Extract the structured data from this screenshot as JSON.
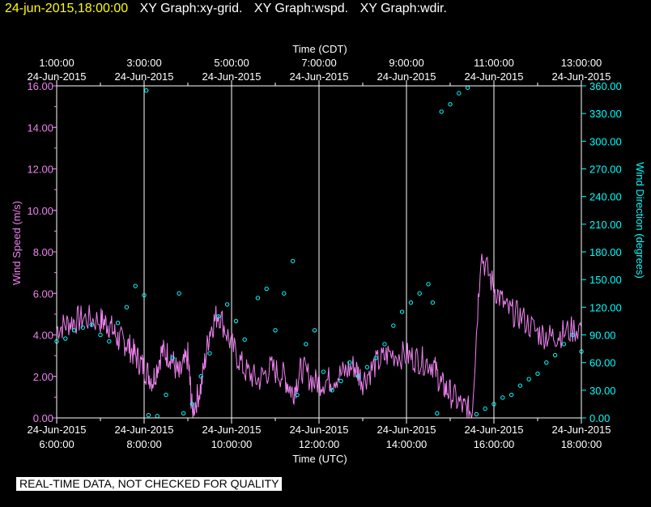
{
  "title": {
    "date": "24-jun-2015,18:00:00",
    "graphs": [
      "XY Graph:xy-grid.",
      "XY Graph:wspd.",
      "XY Graph:wdir."
    ]
  },
  "disclaimer": "REAL-TIME DATA, NOT CHECKED FOR QUALITY",
  "colors": {
    "background": "#000000",
    "speed": "#ee82ee",
    "direction": "#00ffff",
    "title_date": "#ffff00",
    "axis_text": "#ffffff",
    "grid": "#ffffff"
  },
  "chart_data": {
    "type": "line",
    "grid": true,
    "x_range": [
      "24-Jun-2015 06:00:00 UTC",
      "24-Jun-2015 18:00:00 UTC"
    ],
    "top_axis": {
      "label": "Time (CDT)",
      "ticks": [
        {
          "hour": 1,
          "time": "1:00:00",
          "date": "24-Jun-2015"
        },
        {
          "hour": 3,
          "time": "3:00:00",
          "date": "24-Jun-2015"
        },
        {
          "hour": 5,
          "time": "5:00:00",
          "date": "24-Jun-2015"
        },
        {
          "hour": 7,
          "time": "7:00:00",
          "date": "24-Jun-2015"
        },
        {
          "hour": 9,
          "time": "9:00:00",
          "date": "24-Jun-2015"
        },
        {
          "hour": 11,
          "time": "11:00:00",
          "date": "24-Jun-2015"
        },
        {
          "hour": 13,
          "time": "13:00:00",
          "date": "24-Jun-2015"
        }
      ]
    },
    "bottom_axis": {
      "label": "Time (UTC)",
      "ticks": [
        {
          "hour": 6,
          "date": "24-Jun-2015",
          "time": "6:00:00"
        },
        {
          "hour": 8,
          "date": "24-Jun-2015",
          "time": "8:00:00"
        },
        {
          "hour": 10,
          "date": "24-Jun-2015",
          "time": "10:00:00"
        },
        {
          "hour": 12,
          "date": "24-Jun-2015",
          "time": "12:00:00"
        },
        {
          "hour": 14,
          "date": "24-Jun-2015",
          "time": "14:00:00"
        },
        {
          "hour": 16,
          "date": "24-Jun-2015",
          "time": "16:00:00"
        },
        {
          "hour": 18,
          "date": "24-Jun-2015",
          "time": "18:00:00"
        }
      ]
    },
    "left_axis": {
      "label": "Wind Speed (m/s)",
      "range": [
        0,
        16
      ],
      "ticks": [
        "0.00",
        "2.00",
        "4.00",
        "6.00",
        "8.00",
        "10.00",
        "12.00",
        "14.00",
        "16.00"
      ]
    },
    "right_axis": {
      "label": "Wind Direction (degrees)",
      "range": [
        0,
        360
      ],
      "ticks": [
        "0.00",
        "30.00",
        "60.00",
        "90.00",
        "120.00",
        "150.00",
        "180.00",
        "210.00",
        "240.00",
        "270.00",
        "300.00",
        "330.00",
        "360.00"
      ]
    },
    "series": [
      {
        "name": "Wind Speed (m/s)",
        "style": "line",
        "axis": "left",
        "points": [
          [
            6.0,
            4.3
          ],
          [
            6.3,
            4.6
          ],
          [
            6.6,
            4.8
          ],
          [
            7.0,
            4.7
          ],
          [
            7.2,
            4.5
          ],
          [
            7.4,
            3.8
          ],
          [
            7.6,
            3.6
          ],
          [
            7.8,
            3.0
          ],
          [
            8.0,
            2.4
          ],
          [
            8.2,
            1.8
          ],
          [
            8.4,
            3.2
          ],
          [
            8.6,
            3.0
          ],
          [
            8.8,
            2.0
          ],
          [
            9.0,
            3.0
          ],
          [
            9.1,
            0.3
          ],
          [
            9.3,
            1.5
          ],
          [
            9.5,
            4.2
          ],
          [
            9.7,
            5.1
          ],
          [
            10.0,
            3.5
          ],
          [
            10.3,
            2.3
          ],
          [
            10.6,
            1.8
          ],
          [
            10.9,
            2.4
          ],
          [
            11.2,
            2.0
          ],
          [
            11.4,
            1.2
          ],
          [
            11.6,
            2.4
          ],
          [
            11.9,
            1.7
          ],
          [
            12.2,
            1.8
          ],
          [
            12.5,
            2.1
          ],
          [
            12.8,
            2.5
          ],
          [
            13.0,
            1.8
          ],
          [
            13.3,
            2.6
          ],
          [
            13.6,
            3.1
          ],
          [
            14.0,
            3.0
          ],
          [
            14.3,
            2.8
          ],
          [
            14.6,
            2.6
          ],
          [
            14.8,
            1.6
          ],
          [
            15.0,
            1.2
          ],
          [
            15.3,
            0.5
          ],
          [
            15.5,
            0.3
          ],
          [
            15.7,
            7.9
          ],
          [
            16.0,
            6.3
          ],
          [
            16.3,
            5.2
          ],
          [
            16.6,
            4.9
          ],
          [
            17.0,
            4.1
          ],
          [
            17.3,
            3.9
          ],
          [
            17.6,
            4.1
          ],
          [
            18.0,
            4.4
          ]
        ]
      },
      {
        "name": "Wind Direction (degrees)",
        "style": "markers",
        "axis": "right",
        "points": [
          [
            6.0,
            83
          ],
          [
            6.2,
            86
          ],
          [
            6.4,
            95
          ],
          [
            6.6,
            98
          ],
          [
            6.8,
            101
          ],
          [
            7.0,
            90
          ],
          [
            7.2,
            83
          ],
          [
            7.4,
            103
          ],
          [
            7.6,
            120
          ],
          [
            7.8,
            143
          ],
          [
            8.0,
            133
          ],
          [
            8.05,
            355
          ],
          [
            8.1,
            3
          ],
          [
            8.3,
            2
          ],
          [
            8.5,
            25
          ],
          [
            8.65,
            65
          ],
          [
            8.8,
            135
          ],
          [
            8.9,
            5
          ],
          [
            9.1,
            15
          ],
          [
            9.3,
            45
          ],
          [
            9.5,
            70
          ],
          [
            9.7,
            110
          ],
          [
            9.9,
            123
          ],
          [
            10.1,
            105
          ],
          [
            10.3,
            85
          ],
          [
            10.6,
            130
          ],
          [
            10.8,
            140
          ],
          [
            11.0,
            95
          ],
          [
            11.2,
            135
          ],
          [
            11.4,
            170
          ],
          [
            11.5,
            25
          ],
          [
            11.7,
            80
          ],
          [
            11.9,
            95
          ],
          [
            12.1,
            50
          ],
          [
            12.3,
            30
          ],
          [
            12.5,
            40
          ],
          [
            12.7,
            60
          ],
          [
            12.9,
            45
          ],
          [
            13.1,
            55
          ],
          [
            13.3,
            65
          ],
          [
            13.5,
            80
          ],
          [
            13.7,
            100
          ],
          [
            13.9,
            115
          ],
          [
            14.1,
            125
          ],
          [
            14.3,
            135
          ],
          [
            14.5,
            145
          ],
          [
            14.6,
            125
          ],
          [
            14.7,
            5
          ],
          [
            14.8,
            332
          ],
          [
            15.0,
            340
          ],
          [
            15.2,
            352
          ],
          [
            15.4,
            358
          ],
          [
            15.6,
            4
          ],
          [
            15.8,
            10
          ],
          [
            16.0,
            15
          ],
          [
            16.2,
            22
          ],
          [
            16.4,
            25
          ],
          [
            16.6,
            35
          ],
          [
            16.8,
            42
          ],
          [
            17.0,
            48
          ],
          [
            17.2,
            60
          ],
          [
            17.4,
            68
          ],
          [
            17.6,
            80
          ],
          [
            17.8,
            90
          ],
          [
            18.0,
            72
          ]
        ]
      }
    ]
  }
}
